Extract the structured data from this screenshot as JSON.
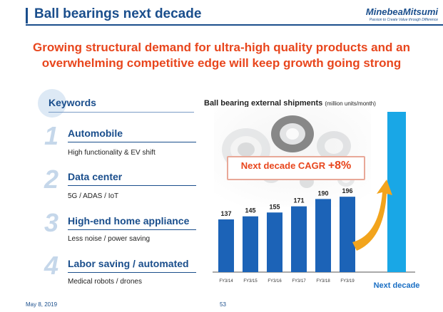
{
  "header": {
    "title": "Ball bearings next decade",
    "logo_text": "MinebeaMitsumi",
    "logo_tagline": "Passion to Create Value through Difference"
  },
  "headline": {
    "line1": "Growing structural demand for ultra-high quality products and an",
    "line2": "overwhelming competitive edge will keep growth going strong"
  },
  "keywords": {
    "title": "Keywords",
    "items": [
      {
        "number": "1",
        "heading": "Automobile",
        "detail": "High functionality & EV shift"
      },
      {
        "number": "2",
        "heading": "Data center",
        "detail": "5G / ADAS / IoT"
      },
      {
        "number": "3",
        "heading": "High-end home appliance",
        "detail": "Less noise / power saving"
      },
      {
        "number": "4",
        "heading": "Labor saving / automated",
        "detail": "Medical robots / drones"
      }
    ]
  },
  "chart": {
    "title": "Ball bearing external shipments",
    "unit": "(million units/month)",
    "cagr_label": "Next decade CAGR",
    "cagr_value": "+8%",
    "next_decade_label": "Next decade"
  },
  "chart_data": {
    "type": "bar",
    "title": "Ball bearing external shipments",
    "unit": "(million units/month)",
    "categories": [
      "FY3/14",
      "FY3/15",
      "FY3/16",
      "FY3/17",
      "FY3/18",
      "FY3/19",
      "Next decade"
    ],
    "values": [
      137,
      145,
      155,
      171,
      190,
      196,
      null
    ],
    "data_labels": [
      "137",
      "145",
      "155",
      "171",
      "190",
      "196",
      ""
    ],
    "colors": {
      "history": "#1c63b7",
      "projection": "#19a7e6",
      "arrow": "#f2a41c"
    },
    "projection_relative_height": 0.82,
    "grid": false
  },
  "footer": {
    "date": "May 8, 2019",
    "page": "53"
  }
}
